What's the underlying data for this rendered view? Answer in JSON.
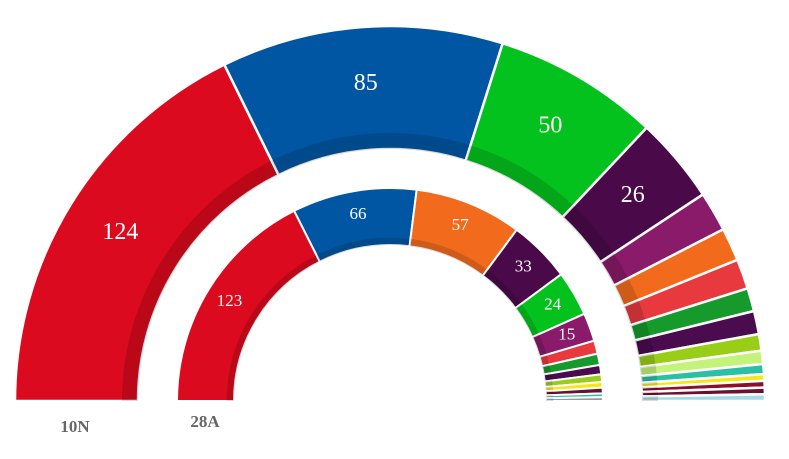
{
  "chart_data": [
    {
      "type": "hemicycle",
      "label": "10N",
      "values": [
        124,
        85,
        50,
        26,
        12,
        10,
        9,
        7,
        7,
        5,
        4,
        3,
        2,
        2,
        2,
        2
      ],
      "colors": [
        "#dc0a1e",
        "#0056a3",
        "#04c21e",
        "#4a0a4a",
        "#8a1a6a",
        "#f26b1d",
        "#e8393f",
        "#169a2c",
        "#4b0c4f",
        "#9acd18",
        "#c5f27a",
        "#2bbfa5",
        "#f4e81c",
        "#8b0f2a",
        "#6b1030",
        "#a6d8e8"
      ]
    },
    {
      "type": "hemicycle",
      "label": "28A",
      "values": [
        123,
        66,
        57,
        33,
        24,
        15,
        7,
        6,
        5,
        4,
        3,
        3,
        2,
        2
      ],
      "colors": [
        "#dc0a1e",
        "#0056a3",
        "#f26b1d",
        "#4a0a4a",
        "#04c21e",
        "#8a1a6a",
        "#e8393f",
        "#169a2c",
        "#4b0c4f",
        "#9acd18",
        "#f4e81c",
        "#6b1030",
        "#2bbfa5",
        "#999999"
      ]
    }
  ]
}
